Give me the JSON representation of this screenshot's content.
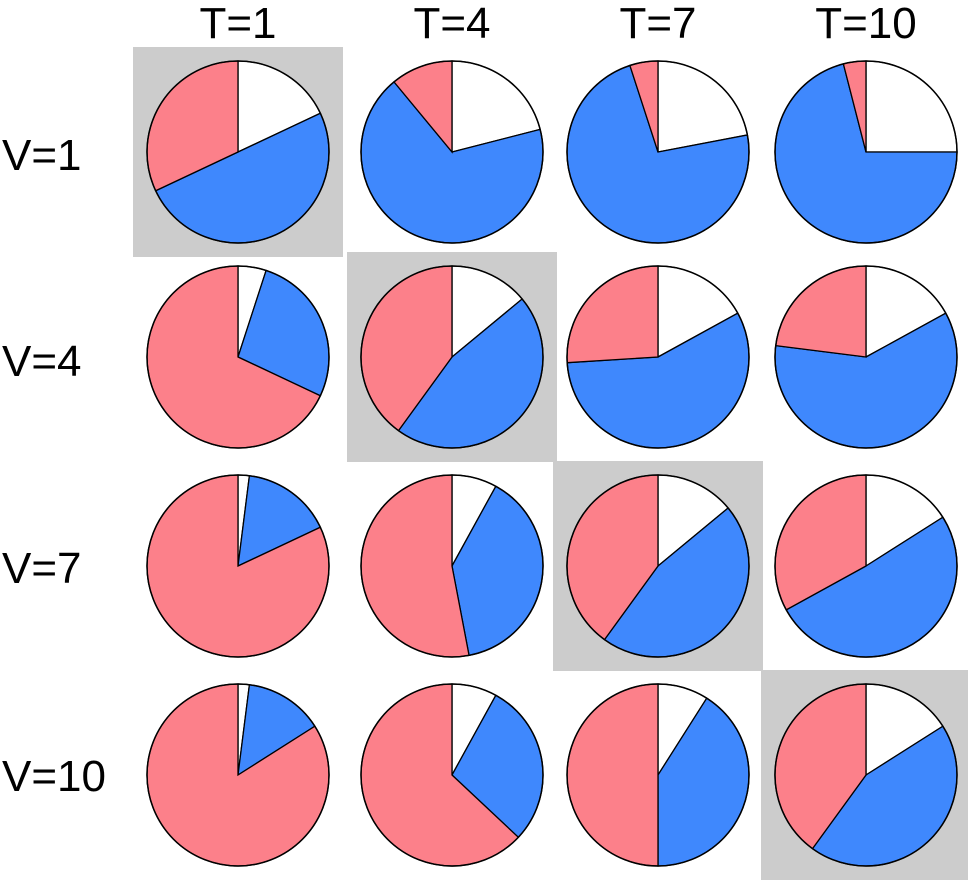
{
  "chart_data": {
    "type": "pie",
    "col_labels": [
      "T=1",
      "T=4",
      "T=7",
      "T=10"
    ],
    "row_labels": [
      "V=1",
      "V=4",
      "V=7",
      "V=10"
    ],
    "slice_order": [
      "white",
      "blue",
      "red"
    ],
    "colors": {
      "white": "#ffffff",
      "blue": "#3f88fd",
      "red": "#fc808a",
      "highlight": "#cccccc",
      "stroke": "#000000"
    },
    "highlighted_cells": [
      [
        0,
        0
      ],
      [
        1,
        1
      ],
      [
        2,
        2
      ],
      [
        3,
        3
      ]
    ],
    "pies": [
      [
        {
          "white": 0.18,
          "blue": 0.5,
          "red": 0.32
        },
        {
          "white": 0.21,
          "blue": 0.68,
          "red": 0.11
        },
        {
          "white": 0.22,
          "blue": 0.73,
          "red": 0.05
        },
        {
          "white": 0.25,
          "blue": 0.71,
          "red": 0.04
        }
      ],
      [
        {
          "white": 0.05,
          "blue": 0.27,
          "red": 0.68
        },
        {
          "white": 0.14,
          "blue": 0.46,
          "red": 0.4
        },
        {
          "white": 0.17,
          "blue": 0.57,
          "red": 0.26
        },
        {
          "white": 0.17,
          "blue": 0.6,
          "red": 0.23
        }
      ],
      [
        {
          "white": 0.02,
          "blue": 0.16,
          "red": 0.82
        },
        {
          "white": 0.08,
          "blue": 0.39,
          "red": 0.53
        },
        {
          "white": 0.14,
          "blue": 0.46,
          "red": 0.4
        },
        {
          "white": 0.16,
          "blue": 0.51,
          "red": 0.33
        }
      ],
      [
        {
          "white": 0.02,
          "blue": 0.14,
          "red": 0.84
        },
        {
          "white": 0.08,
          "blue": 0.29,
          "red": 0.63
        },
        {
          "white": 0.09,
          "blue": 0.41,
          "red": 0.5
        },
        {
          "white": 0.16,
          "blue": 0.44,
          "red": 0.4
        }
      ]
    ]
  }
}
